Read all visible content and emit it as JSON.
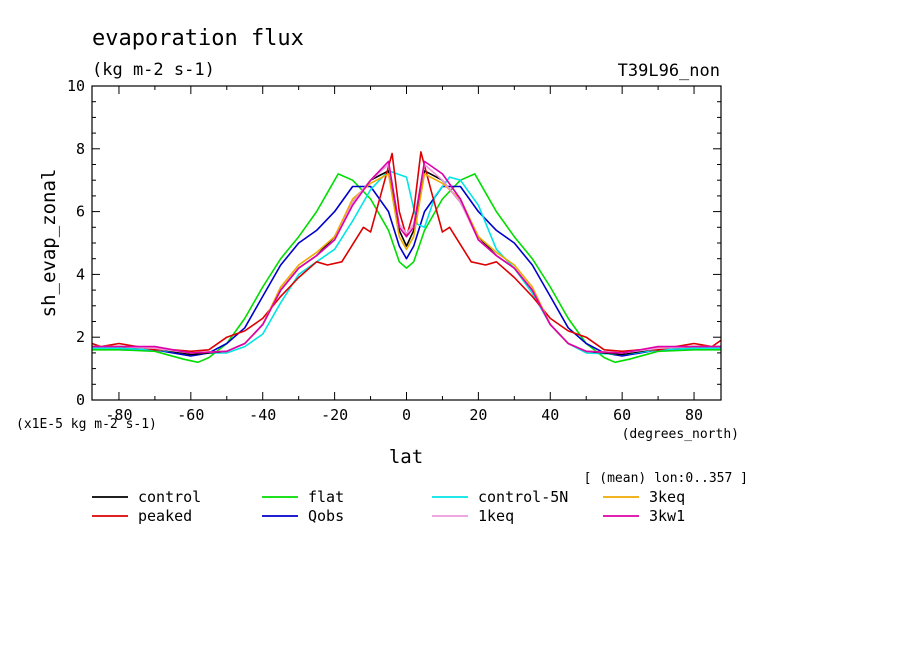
{
  "chart_data": {
    "type": "line",
    "title": "evaporation flux",
    "units_subtitle": "(kg m-2 s-1)",
    "run_label": "T39L96_non",
    "ylabel": "sh_evap_zonal",
    "xlabel": "lat",
    "x_units_label": "(degrees_north)",
    "y_scale_label": "(x1E-5 kg m-2 s-1)",
    "mean_note": "[ (mean) lon:0..357 ]",
    "xlim": [
      -87.5,
      87.5
    ],
    "ylim": [
      0,
      10
    ],
    "xticks": [
      -80,
      -60,
      -40,
      -20,
      0,
      20,
      40,
      60,
      80
    ],
    "yticks": [
      0,
      2,
      4,
      6,
      8,
      10
    ],
    "xtick_labels": [
      "-80",
      "-60",
      "-40",
      "-20",
      "0",
      "20",
      "40",
      "60",
      "80"
    ],
    "ytick_labels": [
      "0",
      "2",
      "4",
      "6",
      "8",
      "10"
    ],
    "series": [
      {
        "name": "control",
        "color": "#000000",
        "x": [
          -87.5,
          -80,
          -70,
          -60,
          -50,
          -45,
          -40,
          -35,
          -30,
          -25,
          -20,
          -15,
          -10,
          -5,
          -2,
          0,
          2,
          5,
          10,
          15,
          20,
          25,
          30,
          35,
          40,
          45,
          50,
          60,
          70,
          80,
          87.5
        ],
        "y": [
          1.7,
          1.7,
          1.65,
          1.45,
          1.55,
          1.8,
          2.4,
          3.5,
          4.2,
          4.6,
          5.2,
          6.3,
          7.0,
          7.3,
          5.4,
          4.9,
          5.4,
          7.3,
          7.0,
          6.3,
          5.2,
          4.6,
          4.2,
          3.5,
          2.4,
          1.8,
          1.55,
          1.45,
          1.65,
          1.7,
          1.7
        ]
      },
      {
        "name": "peaked",
        "color": "#dd0000",
        "x": [
          -87.5,
          -85,
          -80,
          -75,
          -70,
          -65,
          -60,
          -55,
          -50,
          -45,
          -40,
          -35,
          -30,
          -25,
          -22,
          -18,
          -15,
          -12,
          -10,
          -7,
          -4,
          -2,
          0,
          2,
          4,
          7,
          10,
          12,
          15,
          18,
          22,
          25,
          30,
          35,
          40,
          45,
          50,
          55,
          60,
          65,
          70,
          75,
          80,
          85,
          87.5
        ],
        "y": [
          1.8,
          1.7,
          1.8,
          1.7,
          1.6,
          1.6,
          1.55,
          1.6,
          2.0,
          2.2,
          2.6,
          3.3,
          3.9,
          4.4,
          4.3,
          4.4,
          4.95,
          5.5,
          5.35,
          6.6,
          7.85,
          6.0,
          5.2,
          6.0,
          7.9,
          6.6,
          5.35,
          5.5,
          4.95,
          4.4,
          4.3,
          4.4,
          3.9,
          3.3,
          2.6,
          2.2,
          2.0,
          1.6,
          1.55,
          1.6,
          1.6,
          1.7,
          1.8,
          1.7,
          1.9
        ]
      },
      {
        "name": "flat",
        "color": "#00dd00",
        "x": [
          -87.5,
          -80,
          -70,
          -62,
          -58,
          -55,
          -50,
          -45,
          -40,
          -35,
          -30,
          -25,
          -22,
          -19,
          -15,
          -10,
          -5,
          -2,
          0,
          2,
          5,
          10,
          15,
          19,
          22,
          25,
          30,
          35,
          40,
          45,
          50,
          55,
          58,
          62,
          70,
          80,
          87.5
        ],
        "y": [
          1.6,
          1.6,
          1.55,
          1.3,
          1.2,
          1.35,
          1.8,
          2.6,
          3.6,
          4.5,
          5.2,
          6.0,
          6.6,
          7.2,
          7.0,
          6.4,
          5.4,
          4.4,
          4.2,
          4.4,
          5.4,
          6.4,
          7.0,
          7.2,
          6.6,
          6.0,
          5.2,
          4.5,
          3.6,
          2.6,
          1.8,
          1.35,
          1.2,
          1.3,
          1.55,
          1.6,
          1.6
        ]
      },
      {
        "name": "Qobs",
        "color": "#0000cc",
        "x": [
          -87.5,
          -80,
          -70,
          -60,
          -55,
          -50,
          -45,
          -40,
          -35,
          -30,
          -25,
          -20,
          -15,
          -10,
          -5,
          -2,
          0,
          2,
          5,
          10,
          15,
          20,
          25,
          30,
          35,
          40,
          45,
          50,
          55,
          60,
          70,
          80,
          87.5
        ],
        "y": [
          1.7,
          1.65,
          1.6,
          1.4,
          1.5,
          1.8,
          2.3,
          3.3,
          4.3,
          5.0,
          5.4,
          6.0,
          6.8,
          6.8,
          6.0,
          4.9,
          4.5,
          4.9,
          6.0,
          6.8,
          6.8,
          6.0,
          5.4,
          5.0,
          4.3,
          3.3,
          2.3,
          1.8,
          1.5,
          1.4,
          1.6,
          1.65,
          1.7
        ]
      },
      {
        "name": "control-5N",
        "color": "#00e5e5",
        "x": [
          -87.5,
          -80,
          -70,
          -60,
          -50,
          -45,
          -40,
          -35,
          -30,
          -25,
          -20,
          -15,
          -10,
          -5,
          0,
          3,
          5,
          8,
          12,
          15,
          20,
          25,
          30,
          35,
          40,
          45,
          50,
          60,
          70,
          80,
          87.5
        ],
        "y": [
          1.65,
          1.65,
          1.6,
          1.5,
          1.5,
          1.7,
          2.1,
          3.1,
          4.0,
          4.4,
          4.8,
          5.7,
          6.7,
          7.3,
          7.1,
          5.6,
          5.5,
          6.5,
          7.1,
          7.0,
          6.2,
          4.8,
          4.2,
          3.4,
          2.4,
          1.8,
          1.5,
          1.45,
          1.6,
          1.65,
          1.65
        ]
      },
      {
        "name": "1keq",
        "color": "#ee99dd",
        "x": [
          -87.5,
          -80,
          -70,
          -60,
          -50,
          -45,
          -40,
          -35,
          -30,
          -25,
          -20,
          -15,
          -10,
          -5,
          -2,
          0,
          2,
          5,
          10,
          15,
          20,
          25,
          30,
          35,
          40,
          45,
          50,
          60,
          70,
          80,
          87.5
        ],
        "y": [
          1.7,
          1.7,
          1.65,
          1.5,
          1.55,
          1.8,
          2.4,
          3.5,
          4.2,
          4.6,
          5.1,
          6.3,
          7.0,
          7.5,
          5.6,
          5.3,
          5.6,
          7.5,
          7.0,
          6.3,
          5.1,
          4.6,
          4.2,
          3.5,
          2.4,
          1.8,
          1.55,
          1.5,
          1.65,
          1.7,
          1.7
        ]
      },
      {
        "name": "3keq",
        "color": "#eeaa00",
        "x": [
          -87.5,
          -80,
          -70,
          -60,
          -50,
          -45,
          -40,
          -35,
          -30,
          -25,
          -20,
          -15,
          -10,
          -5,
          -2,
          0,
          2,
          5,
          10,
          15,
          20,
          25,
          30,
          35,
          40,
          45,
          50,
          60,
          70,
          80,
          87.5
        ],
        "y": [
          1.7,
          1.7,
          1.65,
          1.5,
          1.55,
          1.8,
          2.4,
          3.6,
          4.3,
          4.7,
          5.2,
          6.4,
          6.9,
          7.2,
          5.2,
          4.8,
          5.2,
          7.2,
          6.9,
          6.4,
          5.2,
          4.7,
          4.3,
          3.6,
          2.4,
          1.8,
          1.55,
          1.5,
          1.65,
          1.7,
          1.7
        ]
      },
      {
        "name": "3kw1",
        "color": "#dd00aa",
        "x": [
          -87.5,
          -80,
          -70,
          -60,
          -50,
          -45,
          -40,
          -35,
          -30,
          -25,
          -20,
          -15,
          -10,
          -5,
          -2,
          0,
          2,
          5,
          10,
          15,
          20,
          25,
          30,
          35,
          40,
          45,
          50,
          60,
          70,
          80,
          87.5
        ],
        "y": [
          1.7,
          1.7,
          1.7,
          1.5,
          1.55,
          1.8,
          2.4,
          3.5,
          4.2,
          4.6,
          5.1,
          6.2,
          7.0,
          7.6,
          5.5,
          5.2,
          5.5,
          7.6,
          7.2,
          6.4,
          5.1,
          4.6,
          4.2,
          3.5,
          2.4,
          1.8,
          1.55,
          1.5,
          1.7,
          1.7,
          1.7
        ]
      }
    ]
  }
}
